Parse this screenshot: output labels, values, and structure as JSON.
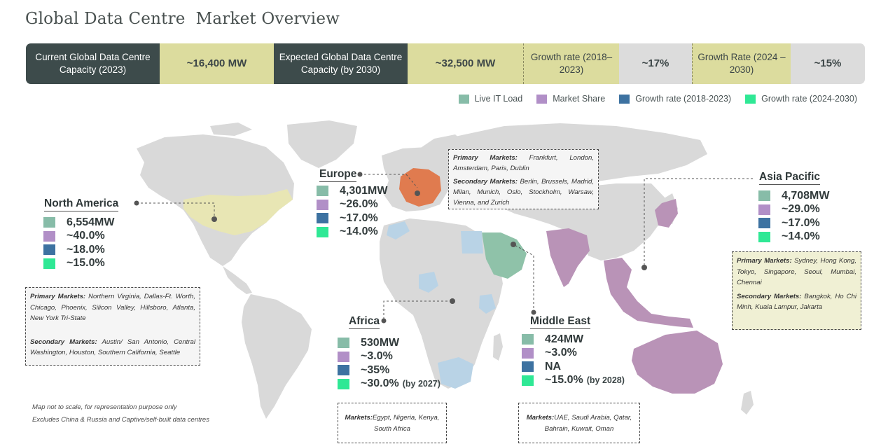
{
  "title": "Global Data Centre  Market Overview",
  "stats": [
    {
      "label": "Current Global Data Centre Capacity (2023)",
      "value": "~16,400 MW"
    },
    {
      "label": "Expected Global Data Centre Capacity (by 2030)",
      "value": "~32,500 MW"
    },
    {
      "label": "Growth rate (2018– 2023)",
      "value": "~17%"
    },
    {
      "label": "Growth Rate (2024 – 2030)",
      "value": "~15%"
    }
  ],
  "legend": [
    {
      "label": "Live IT Load",
      "color": "#87bca8"
    },
    {
      "label": "Market Share",
      "color": "#b18fc7"
    },
    {
      "label": "Growth rate (2018-2023)",
      "color": "#3d72a1"
    },
    {
      "label": "Growth rate (2024-2030)",
      "color": "#2fe895"
    }
  ],
  "regions": {
    "north_america": {
      "name": "North America",
      "live_it_load": "6,554MW",
      "market_share": "~40.0%",
      "growth_2018_2023": "~18.0%",
      "growth_2024_2030": "~15.0%",
      "primary_label": "Primary Markets:",
      "primary": "Northern Virginia, Dallas-Ft. Worth, Chicago, Phoenix, Silicon Valley, Hillsboro, Atlanta, New York Tri-State",
      "secondary_label": "Secondary Markets:",
      "secondary": "Austin/ San Antonio, Central Washington, Houston, Southern California, Seattle"
    },
    "europe": {
      "name": "Europe",
      "live_it_load": "4,301MW",
      "market_share": "~26.0%",
      "growth_2018_2023": "~17.0%",
      "growth_2024_2030": "~14.0%",
      "primary_label": "Primary Markets:",
      "primary": "Frankfurt, London, Amsterdam, Paris, Dublin",
      "secondary_label": "Secondary Markets:",
      "secondary": "Berlin, Brussels, Madrid, Milan, Munich, Oslo, Stockholm, Warsaw, Vienna, and Zurich"
    },
    "asia_pacific": {
      "name": "Asia Pacific",
      "live_it_load": "4,708MW",
      "market_share": "~29.0%",
      "growth_2018_2023": "~17.0%",
      "growth_2024_2030": "~14.0%",
      "primary_label": "Primary Markets:",
      "primary": "Sydney, Hong Kong, Tokyo, Singapore, Seoul, Mumbai, Chennai",
      "secondary_label": "Secondary Markets:",
      "secondary": "Bangkok, Ho Chi Minh, Kuala Lampur, Jakarta"
    },
    "africa": {
      "name": "Africa",
      "live_it_load": "530MW",
      "market_share": "~3.0%",
      "growth_2018_2023": "~35%",
      "growth_2024_2030": "~30.0%",
      "growth_2024_2030_note": "(by 2027)",
      "markets_label": "Markets:",
      "markets": "Egypt, Nigeria, Kenya, South Africa"
    },
    "middle_east": {
      "name": "Middle East",
      "live_it_load": "424MW",
      "market_share": "~3.0%",
      "growth_2018_2023": "NA",
      "growth_2024_2030": "~15.0%",
      "growth_2024_2030_note": "(by 2028)",
      "markets_label": "Markets:",
      "markets": "UAE, Saudi Arabia, Qatar, Bahrain, Kuwait, Oman"
    }
  },
  "map_colors": {
    "land": "#d9d9d9",
    "north_america_highlight": "#e8e6b4",
    "europe_highlight": "#e07b4f",
    "middle_east_highlight": "#8fc2a9",
    "asia_pacific_highlight": "#b993b7",
    "africa_highlight": "#b9d3e6"
  },
  "footnotes": [
    "Map not to scale, for representation purpose only",
    "Excludes China & Russia and Captive/self-built data centres"
  ]
}
